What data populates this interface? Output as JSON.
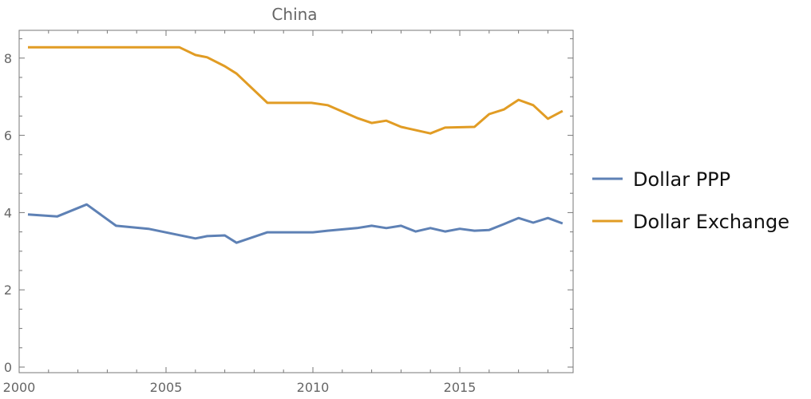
{
  "chart_data": {
    "type": "line",
    "title": "China",
    "xlabel": "",
    "ylabel": "",
    "xlim": [
      2000,
      2018.8
    ],
    "ylim": [
      -0.15,
      8.7
    ],
    "xticks": [
      2000,
      2005,
      2010,
      2015
    ],
    "yticks": [
      0,
      2,
      4,
      6,
      8
    ],
    "xtick_labels": [
      "2000",
      "2005",
      "2010",
      "2015"
    ],
    "ytick_labels": [
      "0",
      "2",
      "4",
      "6",
      "8"
    ],
    "grid": false,
    "legend_position": "right",
    "series": [
      {
        "name": "Dollar PPP",
        "color": "#5e81b5",
        "x": [
          2000.3,
          2001.3,
          2002.3,
          2003.3,
          2004.4,
          2006.0,
          2006.4,
          2007.0,
          2007.4,
          2008.45,
          2009.4,
          2010.0,
          2010.5,
          2011.5,
          2012.0,
          2012.5,
          2013.0,
          2013.5,
          2014.0,
          2014.5,
          2015.0,
          2015.5,
          2016.0,
          2016.5,
          2017.0,
          2017.5,
          2018.0,
          2018.5
        ],
        "y": [
          3.95,
          3.9,
          4.21,
          3.66,
          3.58,
          3.33,
          3.39,
          3.41,
          3.22,
          3.49,
          3.49,
          3.49,
          3.53,
          3.6,
          3.66,
          3.6,
          3.66,
          3.51,
          3.6,
          3.51,
          3.58,
          3.53,
          3.55,
          3.7,
          3.86,
          3.74,
          3.86,
          3.72
        ]
      },
      {
        "name": "Dollar Exchange",
        "color": "#e19c24",
        "x": [
          2000.3,
          2005.45,
          2006.0,
          2006.4,
          2007.0,
          2007.4,
          2008.45,
          2009.95,
          2010.5,
          2011.5,
          2012.0,
          2012.5,
          2013.0,
          2014.0,
          2014.5,
          2015.5,
          2016.0,
          2016.5,
          2017.0,
          2017.5,
          2018.0,
          2018.5
        ],
        "y": [
          8.28,
          8.28,
          8.08,
          8.02,
          7.79,
          7.6,
          6.84,
          6.84,
          6.78,
          6.45,
          6.32,
          6.38,
          6.22,
          6.05,
          6.2,
          6.22,
          6.55,
          6.67,
          6.92,
          6.78,
          6.43,
          6.63
        ]
      }
    ]
  }
}
